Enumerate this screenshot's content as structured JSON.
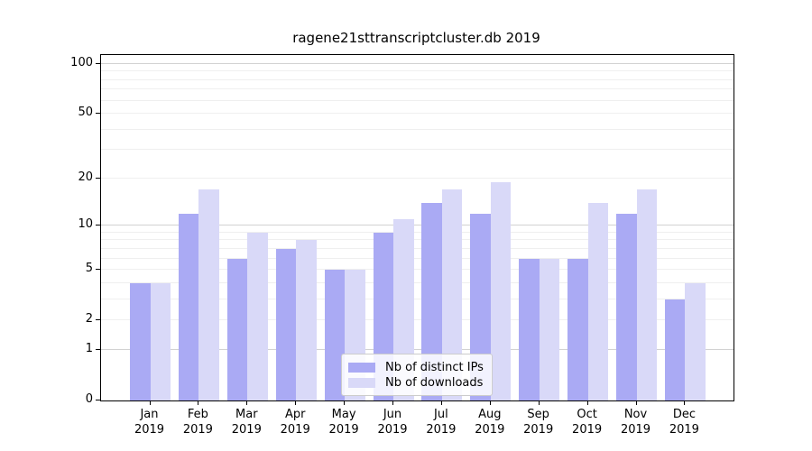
{
  "chart_data": {
    "type": "bar",
    "title": "ragene21sttranscriptcluster.db 2019",
    "categories": [
      "Jan",
      "Feb",
      "Mar",
      "Apr",
      "May",
      "Jun",
      "Jul",
      "Aug",
      "Sep",
      "Oct",
      "Nov",
      "Dec"
    ],
    "category_year": "2019",
    "series": [
      {
        "name": "Nb of distinct IPs",
        "color": "#aaaaf4",
        "values": [
          4,
          12,
          6,
          7,
          5,
          9,
          14,
          12,
          6,
          6,
          12,
          3
        ]
      },
      {
        "name": "Nb of downloads",
        "color": "#d9d9f8",
        "values": [
          4,
          17,
          9,
          8,
          5,
          11,
          17,
          19,
          6,
          14,
          17,
          4
        ]
      }
    ],
    "y_scale": "log10(1+y)",
    "y_ticks": [
      100,
      50,
      20,
      10,
      5,
      2,
      1,
      0
    ],
    "y_major_gridlines": [
      1,
      10,
      100
    ],
    "y_minor_gridlines": [
      2,
      3,
      4,
      5,
      6,
      7,
      8,
      9,
      20,
      30,
      40,
      50,
      60,
      70,
      80,
      90
    ],
    "ylim": [
      0,
      113
    ],
    "xlabel": "",
    "ylabel": "",
    "grid": "horizontal",
    "legend_position": "lower center",
    "colors": {
      "axis": "#000000",
      "grid_major": "#d2d2d2",
      "grid_minor": "#efefef",
      "legend_border": "#cccccc"
    }
  }
}
